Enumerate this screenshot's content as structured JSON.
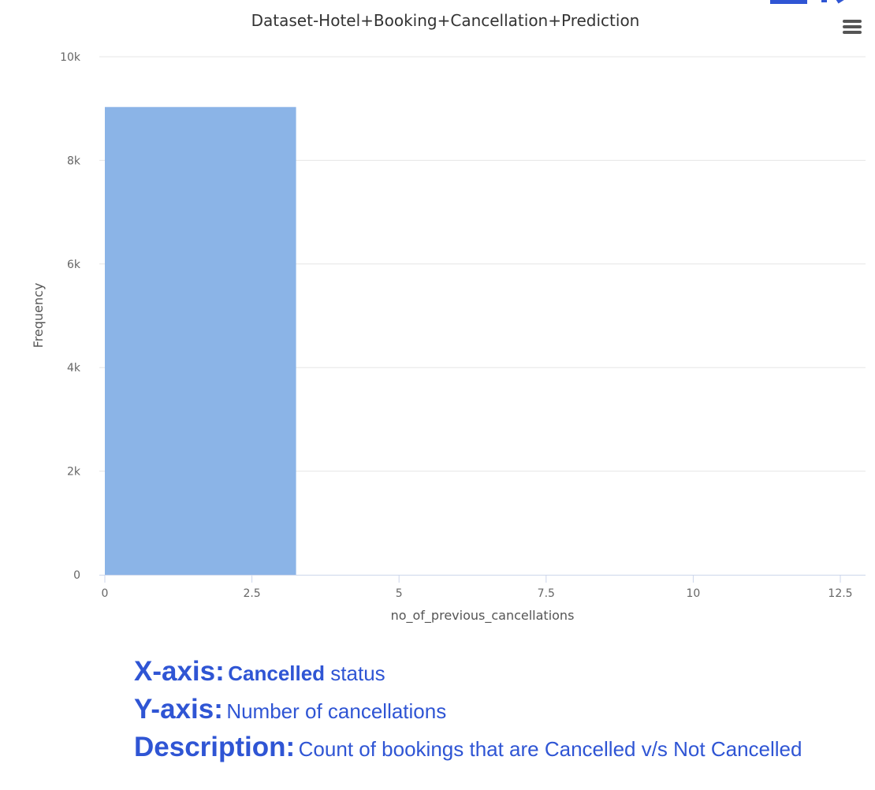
{
  "chart_data": {
    "type": "bar",
    "title": "Dataset-Hotel+Booking+Cancellation+Prediction",
    "xlabel": "no_of_previous_cancellations",
    "ylabel": "Frequency",
    "xlim": [
      0,
      13
    ],
    "ylim": [
      0,
      10000
    ],
    "x_ticks": [
      0,
      2.5,
      5,
      7.5,
      10,
      12.5
    ],
    "x_tick_labels": [
      "0",
      "2.5",
      "5",
      "7.5",
      "10",
      "12.5"
    ],
    "y_ticks": [
      0,
      2000,
      4000,
      6000,
      8000,
      10000
    ],
    "y_tick_labels": [
      "0",
      "2k",
      "4k",
      "6k",
      "8k",
      "10k"
    ],
    "bins": [
      {
        "x0": 0,
        "x1": 3.25,
        "value": 9030
      }
    ],
    "bar_color": "#8bb4e7",
    "grid": true
  },
  "notes": {
    "x_axis": {
      "key": "X-axis:",
      "strong": "Cancelled",
      "rest": " status"
    },
    "y_axis": {
      "key": "Y-axis:",
      "text": "Number of cancellations"
    },
    "description": {
      "key": "Description:",
      "text": "Count of bookings that are Cancelled v/s Not Cancelled"
    }
  },
  "colors": {
    "note_text": "#2f55d4",
    "grid": "#e6e6e6",
    "axis": "#ccd6eb"
  }
}
